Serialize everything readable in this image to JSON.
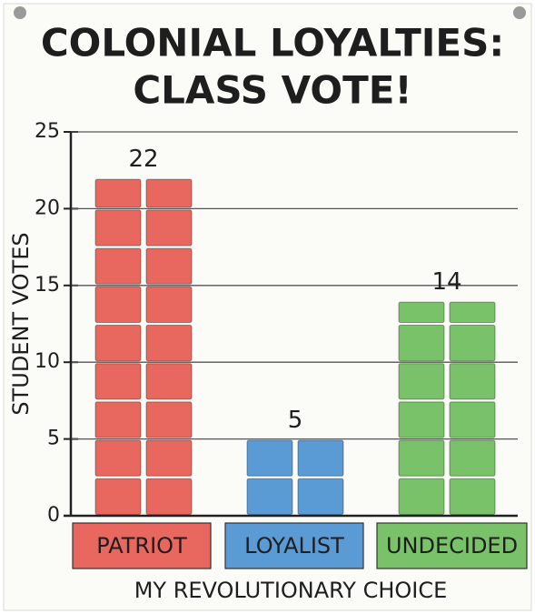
{
  "chart_data": {
    "type": "bar",
    "title": [
      "COLONIAL LOYALTIES:",
      "CLASS VOTE!"
    ],
    "x_label": "MY REVOLUTIONARY CHOICE",
    "y_label": "STUDENT VOTES",
    "categories": [
      "PATRIOT",
      "LOYALIST",
      "UNDECIDED"
    ],
    "values": [
      22,
      5,
      14
    ],
    "colors": [
      "#e8675f",
      "#5b9bd5",
      "#79c26a"
    ],
    "ylim": [
      0,
      25
    ],
    "yticks": [
      0,
      5,
      10,
      15,
      20,
      25
    ],
    "grid": true
  }
}
